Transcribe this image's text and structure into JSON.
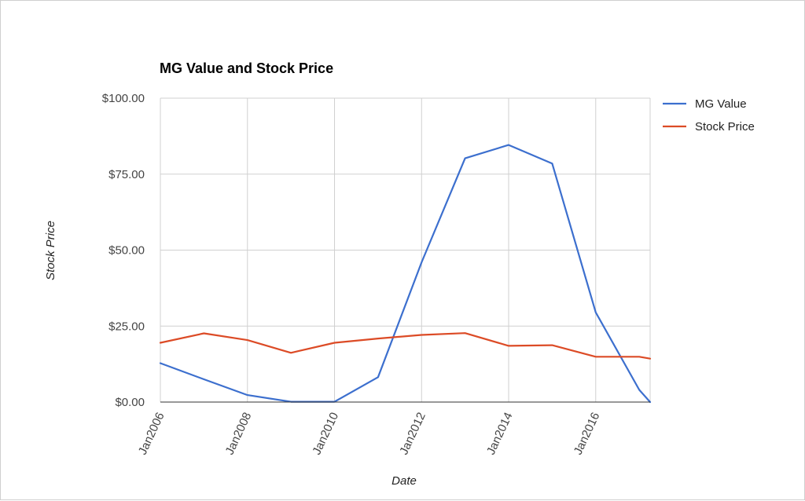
{
  "chart_data": {
    "type": "line",
    "title": "MG Value and Stock Price",
    "xlabel": "Date",
    "ylabel": "Stock Price",
    "x_ticks": [
      "Jan2006",
      "Jan2008",
      "Jan2010",
      "Jan2012",
      "Jan2014",
      "Jan2016"
    ],
    "y_ticks": [
      "$0.00",
      "$25.00",
      "$50.00",
      "$75.00",
      "$100.00"
    ],
    "ylim": [
      0,
      100
    ],
    "xlim": [
      "2006-01",
      "2017-04"
    ],
    "grid": true,
    "legend_position": "right",
    "x": [
      "2006-01",
      "2007-01",
      "2008-01",
      "2009-01",
      "2010-01",
      "2011-01",
      "2012-01",
      "2013-01",
      "2014-01",
      "2015-01",
      "2016-01",
      "2017-01",
      "2017-04"
    ],
    "series": [
      {
        "name": "MG Value",
        "color": "#3c6fce",
        "values": [
          12.8,
          7.5,
          2.3,
          0.1,
          0.1,
          8.2,
          46.0,
          80.2,
          84.6,
          78.5,
          29.5,
          4.0,
          0.0
        ]
      },
      {
        "name": "Stock Price",
        "color": "#dc4b26",
        "values": [
          19.5,
          22.6,
          20.4,
          16.2,
          19.5,
          20.9,
          22.1,
          22.7,
          18.5,
          18.7,
          14.9,
          14.9,
          14.3
        ]
      }
    ]
  }
}
